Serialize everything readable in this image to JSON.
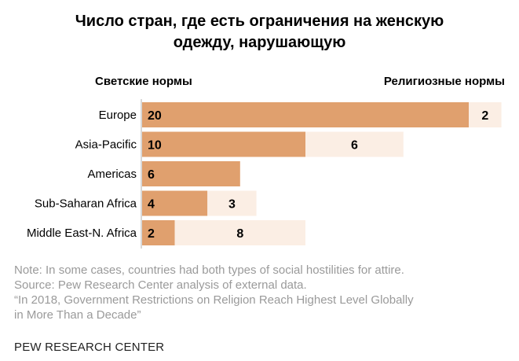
{
  "title_line1": "Число стран, где есть ограничения на женскую",
  "title_line2": "одежду, нарушающую",
  "legend": {
    "secular": "Светские нормы",
    "religious": "Религиозные нормы"
  },
  "colors": {
    "secular": "#e0a06e",
    "religious": "#fbeee4",
    "axis": "#b0b0b0",
    "text": "#000000"
  },
  "chart_data": {
    "type": "bar",
    "orientation": "horizontal",
    "stacked": true,
    "categories": [
      "Europe",
      "Asia-Pacific",
      "Americas",
      "Sub-Saharan Africa",
      "Middle East-N. Africa"
    ],
    "series": [
      {
        "name": "Светские нормы",
        "values": [
          20,
          10,
          6,
          4,
          2
        ]
      },
      {
        "name": "Религиозные нормы",
        "values": [
          2,
          6,
          0,
          3,
          8
        ]
      }
    ],
    "xlim": [
      0,
      22
    ]
  },
  "notes": [
    "Note: In some cases, countries had both types of social hostilities for attire.",
    "Source: Pew Research Center analysis of external data.",
    "“In 2018, Government Restrictions on Religion Reach Highest Level Globally",
    "in More Than a Decade”"
  ],
  "source_org": "PEW RESEARCH CENTER"
}
